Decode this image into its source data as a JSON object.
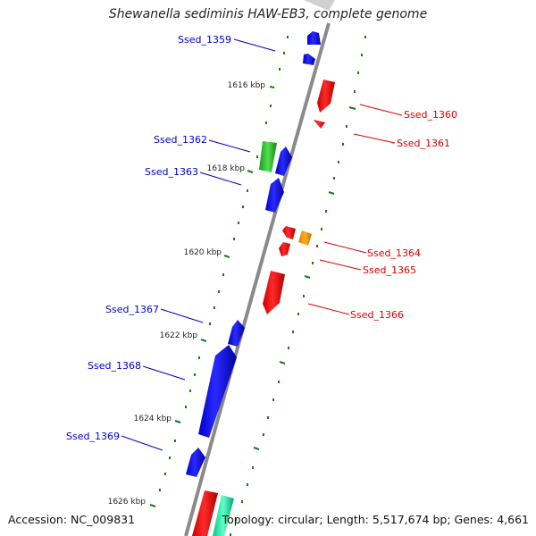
{
  "title": "Shewanella sediminis HAW-EB3, complete genome",
  "footer": {
    "accession": "Accession: NC_009831",
    "summary": "Topology: circular; Length: 5,517,674 bp; Genes: 4,661"
  },
  "colors": {
    "backbone": "#8a8a8a",
    "tick": "#1a7a1a",
    "forward_cds": "#0000e6",
    "reverse_cds": "#e00000",
    "rna_green": "#22bb22",
    "orange_feature": "#f08c00",
    "teal_feature": "#10e0a0",
    "label_forward": "#0000cc",
    "label_reverse": "#dd0000"
  },
  "scale_labels": [
    "1616 kbp",
    "1618 kbp",
    "1620 kbp",
    "1622 kbp",
    "1624 kbp",
    "1626 kbp"
  ],
  "gene_labels": {
    "left": [
      "Ssed_1359",
      "Ssed_1362",
      "Ssed_1363",
      "Ssed_1367",
      "Ssed_1368",
      "Ssed_1369"
    ],
    "right": [
      "Ssed_1360",
      "Ssed_1361",
      "Ssed_1364",
      "Ssed_1365",
      "Ssed_1366"
    ]
  }
}
